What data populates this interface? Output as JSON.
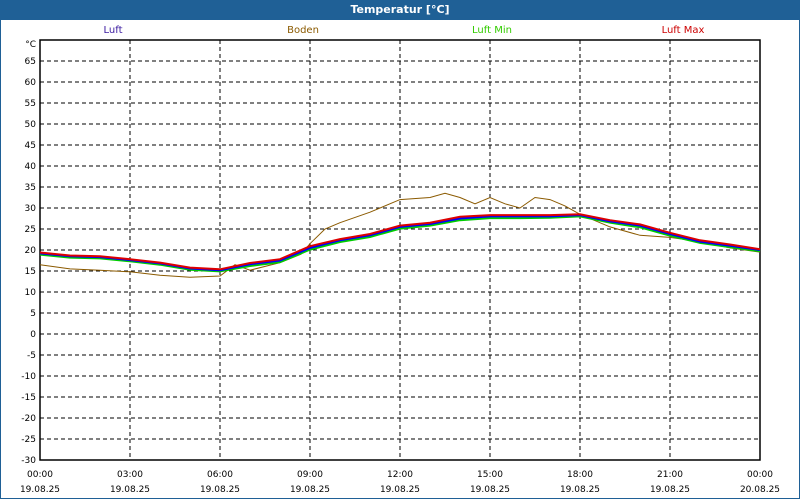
{
  "window": {
    "title": "Temperatur [°C]"
  },
  "chart_data": {
    "type": "line",
    "title": "Temperatur [°C]",
    "ylabel": "°C",
    "ylim": [
      -30,
      70
    ],
    "yticks": [
      -30,
      -25,
      -20,
      -15,
      -10,
      -5,
      0,
      5,
      10,
      15,
      20,
      25,
      30,
      35,
      40,
      45,
      50,
      55,
      60,
      65
    ],
    "xlim_hours": [
      0,
      24
    ],
    "xticks": [
      {
        "h": 0,
        "time": "00:00",
        "date": "19.08.25"
      },
      {
        "h": 3,
        "time": "03:00",
        "date": "19.08.25"
      },
      {
        "h": 6,
        "time": "06:00",
        "date": "19.08.25"
      },
      {
        "h": 9,
        "time": "09:00",
        "date": "19.08.25"
      },
      {
        "h": 12,
        "time": "12:00",
        "date": "19.08.25"
      },
      {
        "h": 15,
        "time": "15:00",
        "date": "19.08.25"
      },
      {
        "h": 18,
        "time": "18:00",
        "date": "19.08.25"
      },
      {
        "h": 21,
        "time": "21:00",
        "date": "19.08.25"
      },
      {
        "h": 24,
        "time": "00:00",
        "date": "20.08.25"
      }
    ],
    "grid": true,
    "legend_position": "top",
    "series": [
      {
        "name": "Luft",
        "color": "#0000ff",
        "legend_color": "#3a1aa0",
        "x": [
          0,
          1,
          2,
          3,
          4,
          5,
          6,
          7,
          8,
          9,
          10,
          11,
          12,
          13,
          14,
          15,
          16,
          17,
          18,
          19,
          20,
          21,
          22,
          23,
          24
        ],
        "y": [
          19.2,
          18.5,
          18.3,
          17.6,
          16.8,
          15.6,
          15.2,
          16.6,
          17.5,
          20.5,
          22.3,
          23.5,
          25.5,
          26.2,
          27.5,
          28,
          28,
          28,
          28.3,
          26.8,
          25.8,
          23.8,
          22.0,
          21.0,
          20.0
        ]
      },
      {
        "name": "Boden",
        "color": "#8b5a00",
        "legend_color": "#8b5a00",
        "x": [
          0,
          1,
          2,
          3,
          4,
          5,
          6,
          6.5,
          7,
          8,
          8.7,
          9,
          9.5,
          10,
          11,
          12,
          13,
          13.5,
          14,
          14.5,
          15,
          15.5,
          16,
          16.5,
          17,
          17.5,
          18,
          19,
          20,
          21,
          22,
          23,
          24
        ],
        "y": [
          16.5,
          15.5,
          15.2,
          14.8,
          14,
          13.5,
          13.8,
          16.5,
          15.2,
          17,
          19,
          21.5,
          25,
          26.5,
          29,
          32,
          32.5,
          33.5,
          32.5,
          31,
          32.5,
          31,
          30,
          32.5,
          32,
          30.5,
          28.5,
          25.5,
          23.5,
          23,
          22,
          20.5,
          19.5
        ]
      },
      {
        "name": "Luft Min",
        "color": "#00cc00",
        "legend_color": "#33cc00",
        "x": [
          0,
          1,
          2,
          3,
          4,
          5,
          6,
          7,
          8,
          9,
          10,
          11,
          12,
          13,
          14,
          15,
          16,
          17,
          18,
          19,
          20,
          21,
          22,
          23,
          24
        ],
        "y": [
          18.9,
          18.2,
          18.0,
          17.3,
          16.5,
          15.3,
          14.9,
          16.2,
          17.1,
          20.1,
          21.9,
          23.1,
          25.1,
          25.8,
          27.1,
          27.6,
          27.6,
          27.7,
          28.0,
          26.5,
          25.4,
          23.4,
          21.7,
          20.7,
          19.7
        ]
      },
      {
        "name": "Luft Max",
        "color": "#dd0000",
        "legend_color": "#cc0000",
        "x": [
          0,
          1,
          2,
          3,
          4,
          5,
          6,
          7,
          8,
          9,
          10,
          11,
          12,
          13,
          14,
          15,
          16,
          17,
          18,
          19,
          20,
          21,
          22,
          23,
          24
        ],
        "y": [
          19.4,
          18.7,
          18.5,
          17.8,
          17.0,
          15.8,
          15.4,
          16.9,
          17.8,
          20.9,
          22.6,
          23.8,
          25.8,
          26.5,
          27.9,
          28.3,
          28.3,
          28.3,
          28.5,
          27.1,
          26.1,
          24.1,
          22.3,
          21.3,
          20.2
        ]
      }
    ]
  }
}
